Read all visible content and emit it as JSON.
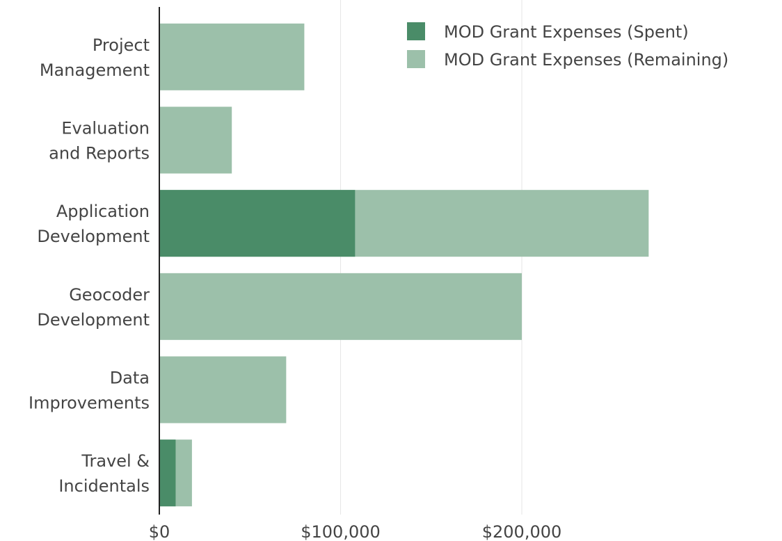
{
  "chart_data": {
    "type": "bar",
    "orientation": "horizontal",
    "barmode": "overlay",
    "categories": [
      [
        "Project",
        "Management"
      ],
      [
        "Evaluation",
        "and Reports"
      ],
      [
        "Application",
        "Development"
      ],
      [
        "Geocoder",
        "Development"
      ],
      [
        "Data",
        "Improvements"
      ],
      [
        "Travel &",
        "Incidentals"
      ]
    ],
    "series": [
      {
        "name": "MOD Grant Expenses (Spent)",
        "color": "#4a8c68",
        "values": [
          0,
          0,
          108000,
          0,
          0,
          9000
        ]
      },
      {
        "name": "MOD Grant Expenses (Remaining)",
        "color": "#9cc0aa",
        "values": [
          80000,
          40000,
          270000,
          200000,
          70000,
          18000
        ]
      }
    ],
    "xlim": [
      0,
      350000
    ],
    "xticks": [
      {
        "value": 0,
        "label": "$0"
      },
      {
        "value": 100000,
        "label": "$100,000"
      },
      {
        "value": 200000,
        "label": "$200,000"
      }
    ],
    "grid": true,
    "legend_position": "top-right",
    "title": "",
    "xlabel": "",
    "ylabel": ""
  }
}
